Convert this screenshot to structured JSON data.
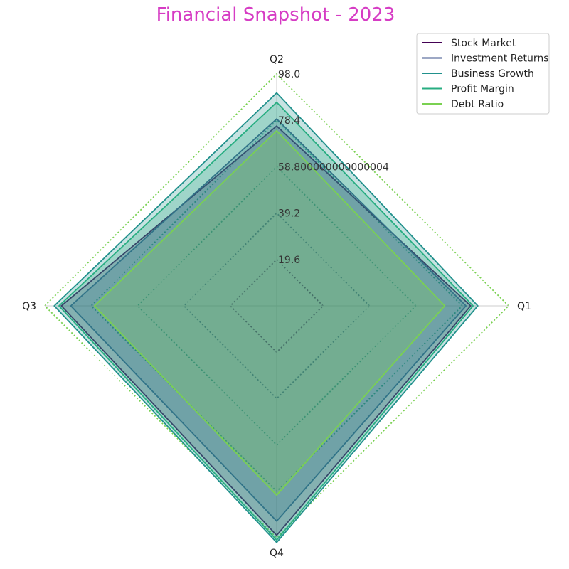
{
  "chart_data": {
    "type": "radar",
    "title": "Financial Snapshot - 2023",
    "categories": [
      "Q1",
      "Q2",
      "Q3",
      "Q4"
    ],
    "ylim": [
      0,
      98.0
    ],
    "ticks": [
      19.6,
      39.2,
      58.80000000000004,
      78.4,
      98.0
    ],
    "tick_labels": [
      "19.6",
      "39.2",
      "58.800000000000004",
      "78.4",
      "98.0"
    ],
    "grid": true,
    "legend_position": "top-right",
    "series": [
      {
        "name": "Stock Market",
        "values": [
          82,
          76,
          91,
          97
        ],
        "color": "#440154"
      },
      {
        "name": "Investment Returns",
        "values": [
          80,
          79,
          87,
          91
        ],
        "color": "#3b528b"
      },
      {
        "name": "Business Growth",
        "values": [
          85,
          90,
          94,
          100
        ],
        "color": "#21918c"
      },
      {
        "name": "Profit Margin",
        "values": [
          83,
          86,
          92,
          99
        ],
        "color": "#27ad81"
      },
      {
        "name": "Debt Ratio",
        "values": [
          71,
          74,
          77,
          80
        ],
        "color": "#7ad151"
      }
    ]
  }
}
